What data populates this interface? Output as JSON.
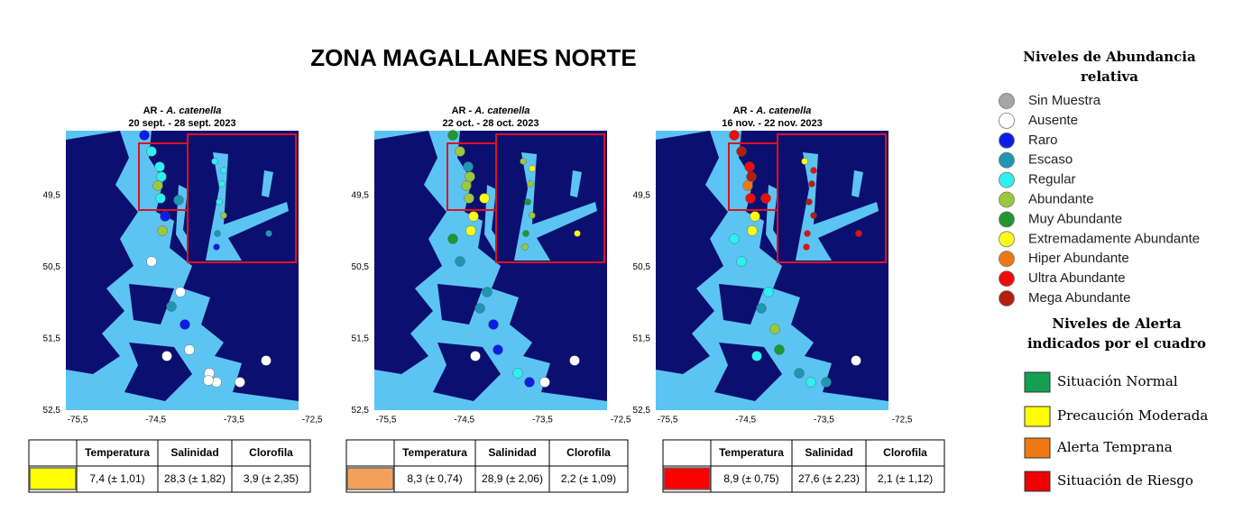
{
  "title": "ZONA MAGALLANES NORTE",
  "panels": [
    {
      "prefix": "AR - ",
      "species": "A. catenella",
      "dates": "20 sept. - 28 sept. 2023",
      "alert_color": "#ffff00",
      "table": {
        "headers": [
          "Temperatura",
          "Salinidad",
          "Clorofila"
        ],
        "values": [
          "7,4 (± 1,01)",
          "28,3 (± 1,82)",
          "3,9 (± 2,35)"
        ]
      }
    },
    {
      "prefix": "AR - ",
      "species": "A. catenella",
      "dates": "22 oct. - 28 oct. 2023",
      "alert_color": "#f4a05a",
      "table": {
        "headers": [
          "Temperatura",
          "Salinidad",
          "Clorofila"
        ],
        "values": [
          "8,3 (± 0,74)",
          "28,9 (± 2,06)",
          "2,2 (± 1,09)"
        ]
      }
    },
    {
      "prefix": "AR - ",
      "species": "A. catenella",
      "dates": "16 nov. - 22 nov. 2023",
      "alert_color": "#ff0000",
      "table": {
        "headers": [
          "Temperatura",
          "Salinidad",
          "Clorofila"
        ],
        "values": [
          "8,9 (± 0,75)",
          "27,6 (± 2,23)",
          "2,1 (± 1,12)"
        ]
      }
    }
  ],
  "map_axes": {
    "yticks": [
      "49,5",
      "50,5",
      "51,5",
      "52,5"
    ],
    "xticks": [
      "-75,5",
      "-74,5",
      "-73,5",
      "-72,5"
    ]
  },
  "legend": {
    "abundance_title": [
      "Niveles de Abundancia",
      "relativa"
    ],
    "abundance": [
      {
        "label": "Sin Muestra",
        "color": "#a6a6a6"
      },
      {
        "label": "Ausente",
        "color": "#ffffff"
      },
      {
        "label": "Raro",
        "color": "#0a1ee6"
      },
      {
        "label": "Escaso",
        "color": "#1e96b4"
      },
      {
        "label": "Regular",
        "color": "#2df0f0"
      },
      {
        "label": "Abundante",
        "color": "#9bc83c"
      },
      {
        "label": "Muy Abundante",
        "color": "#1e9632"
      },
      {
        "label": "Extremadamente Abundante",
        "color": "#ffff14"
      },
      {
        "label": "Hiper Abundante",
        "color": "#f07814"
      },
      {
        "label": "Ultra Abundante",
        "color": "#f00a0a"
      },
      {
        "label": "Mega Abundante",
        "color": "#b41e0a"
      }
    ],
    "alert_title": [
      "Niveles de Alerta",
      "indicados por el cuadro"
    ],
    "alerts": [
      {
        "label": "Situación Normal",
        "color": "#14a050"
      },
      {
        "label": "Precaución Moderada",
        "color": "#ffff00"
      },
      {
        "label": "Alerta Temprana",
        "color": "#f07814"
      },
      {
        "label": "Situación de Riesgo",
        "color": "#f00000"
      }
    ]
  }
}
